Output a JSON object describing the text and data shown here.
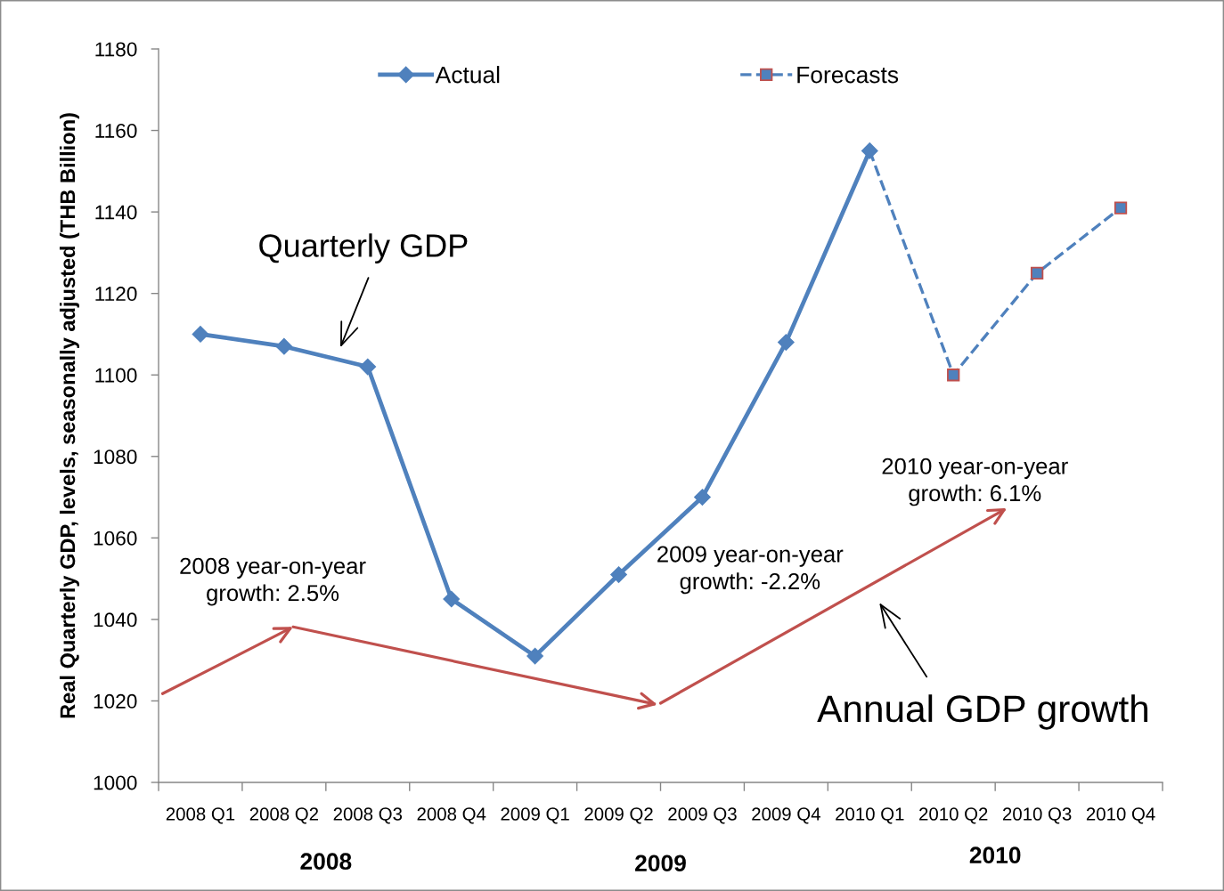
{
  "chart_data": {
    "type": "line",
    "categories": [
      "2008 Q1",
      "2008 Q2",
      "2008 Q3",
      "2008 Q4",
      "2009 Q1",
      "2009 Q2",
      "2009 Q3",
      "2009 Q4",
      "2010 Q1",
      "2010 Q2",
      "2010 Q3",
      "2010 Q4"
    ],
    "ylabel": "Real Quarterly GDP, levels, seasonally adjusted (THB Billion)",
    "ylim": [
      1000,
      1180
    ],
    "yticks": [
      1000,
      1020,
      1040,
      1060,
      1080,
      1100,
      1120,
      1140,
      1160,
      1180
    ],
    "series": [
      {
        "name": "Actual",
        "color": "#4f81bd",
        "marker": "diamond",
        "line_style": "solid",
        "values": [
          1110,
          1107,
          1102,
          1045,
          1031,
          1051,
          1070,
          1108,
          1155,
          null,
          null,
          null
        ]
      },
      {
        "name": "Forecasts",
        "color": "#4f81bd",
        "marker": "square",
        "line_style": "dashed",
        "values": [
          null,
          null,
          null,
          null,
          null,
          null,
          null,
          null,
          1155,
          1100,
          1125,
          1141
        ]
      }
    ],
    "legend": "top",
    "grid": false,
    "annotations": [
      "Quarterly GDP",
      "Annual GDP growth",
      "2008 year-on-year\ngrowth: 2.5%",
      "2009 year-on-year\ngrowth: -2.2%",
      "2010 year-on-year\ngrowth: 6.1%",
      "2008",
      "2009",
      "2010"
    ]
  }
}
